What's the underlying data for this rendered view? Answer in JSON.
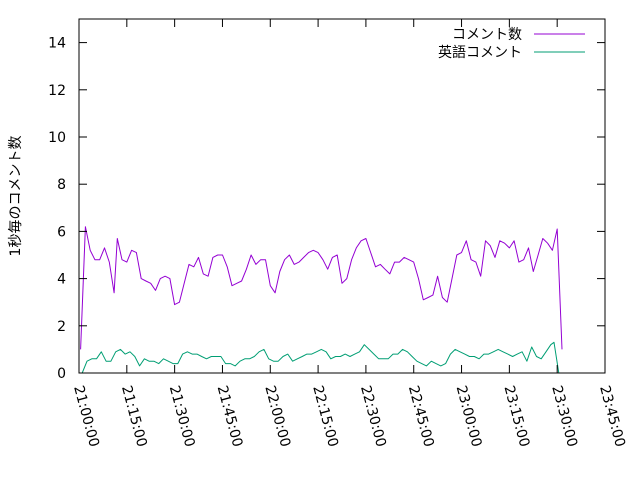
{
  "chart_data": {
    "type": "line",
    "title": "",
    "xlabel": "",
    "ylabel": "1秒毎のコメント数",
    "xlim": [
      0,
      165
    ],
    "ylim": [
      0,
      15
    ],
    "x_ticks": [
      {
        "value": 0,
        "label": "21:00:00"
      },
      {
        "value": 15,
        "label": "21:15:00"
      },
      {
        "value": 30,
        "label": "21:30:00"
      },
      {
        "value": 45,
        "label": "21:45:00"
      },
      {
        "value": 60,
        "label": "22:00:00"
      },
      {
        "value": 75,
        "label": "22:15:00"
      },
      {
        "value": 90,
        "label": "22:30:00"
      },
      {
        "value": 105,
        "label": "22:45:00"
      },
      {
        "value": 120,
        "label": "23:00:00"
      },
      {
        "value": 135,
        "label": "23:15:00"
      },
      {
        "value": 150,
        "label": "23:30:00"
      },
      {
        "value": 165,
        "label": "23:45:00"
      }
    ],
    "y_ticks": [
      0,
      2,
      4,
      6,
      8,
      10,
      12,
      14
    ],
    "grid": false,
    "legend": "top-right",
    "series": [
      {
        "name": "コメント数",
        "color": "#9400d3",
        "points": [
          [
            0.5,
            1.0
          ],
          [
            2.0,
            6.2
          ],
          [
            3.5,
            5.2
          ],
          [
            5.0,
            4.8
          ],
          [
            6.5,
            4.8
          ],
          [
            8.0,
            5.3
          ],
          [
            9.5,
            4.7
          ],
          [
            11.0,
            3.4
          ],
          [
            12.0,
            5.7
          ],
          [
            13.5,
            4.8
          ],
          [
            15.0,
            4.7
          ],
          [
            16.5,
            5.2
          ],
          [
            18.0,
            5.1
          ],
          [
            19.5,
            4.0
          ],
          [
            21.0,
            3.9
          ],
          [
            22.5,
            3.8
          ],
          [
            24.0,
            3.5
          ],
          [
            25.5,
            4.0
          ],
          [
            27.0,
            4.1
          ],
          [
            28.5,
            4.0
          ],
          [
            30.0,
            2.9
          ],
          [
            31.5,
            3.0
          ],
          [
            33.0,
            3.8
          ],
          [
            34.5,
            4.6
          ],
          [
            36.0,
            4.5
          ],
          [
            37.5,
            4.9
          ],
          [
            39.0,
            4.2
          ],
          [
            40.5,
            4.1
          ],
          [
            42.0,
            4.9
          ],
          [
            43.5,
            5.0
          ],
          [
            45.0,
            5.0
          ],
          [
            46.5,
            4.5
          ],
          [
            48.0,
            3.7
          ],
          [
            49.5,
            3.8
          ],
          [
            51.0,
            3.9
          ],
          [
            52.5,
            4.4
          ],
          [
            54.0,
            5.0
          ],
          [
            55.5,
            4.6
          ],
          [
            57.0,
            4.8
          ],
          [
            58.5,
            4.8
          ],
          [
            60.0,
            3.7
          ],
          [
            61.5,
            3.4
          ],
          [
            63.0,
            4.3
          ],
          [
            64.5,
            4.8
          ],
          [
            66.0,
            5.0
          ],
          [
            67.5,
            4.6
          ],
          [
            69.0,
            4.7
          ],
          [
            70.5,
            4.9
          ],
          [
            72.0,
            5.1
          ],
          [
            73.5,
            5.2
          ],
          [
            75.0,
            5.1
          ],
          [
            76.5,
            4.8
          ],
          [
            78.0,
            4.4
          ],
          [
            79.5,
            4.9
          ],
          [
            81.0,
            5.0
          ],
          [
            82.5,
            3.8
          ],
          [
            84.0,
            4.0
          ],
          [
            85.5,
            4.8
          ],
          [
            87.0,
            5.3
          ],
          [
            88.5,
            5.6
          ],
          [
            90.0,
            5.7
          ],
          [
            91.5,
            5.1
          ],
          [
            93.0,
            4.5
          ],
          [
            94.5,
            4.6
          ],
          [
            96.0,
            4.4
          ],
          [
            97.5,
            4.2
          ],
          [
            99.0,
            4.7
          ],
          [
            100.5,
            4.7
          ],
          [
            102.0,
            4.9
          ],
          [
            103.5,
            4.8
          ],
          [
            105.0,
            4.7
          ],
          [
            106.5,
            4.0
          ],
          [
            108.0,
            3.1
          ],
          [
            109.5,
            3.2
          ],
          [
            111.0,
            3.3
          ],
          [
            112.5,
            4.1
          ],
          [
            114.0,
            3.2
          ],
          [
            115.5,
            3.0
          ],
          [
            117.0,
            4.0
          ],
          [
            118.5,
            5.0
          ],
          [
            120.0,
            5.1
          ],
          [
            121.5,
            5.6
          ],
          [
            123.0,
            4.8
          ],
          [
            124.5,
            4.7
          ],
          [
            126.0,
            4.1
          ],
          [
            127.5,
            5.6
          ],
          [
            129.0,
            5.4
          ],
          [
            130.5,
            4.9
          ],
          [
            132.0,
            5.6
          ],
          [
            133.5,
            5.5
          ],
          [
            135.0,
            5.3
          ],
          [
            136.5,
            5.6
          ],
          [
            138.0,
            4.7
          ],
          [
            139.5,
            4.8
          ],
          [
            141.0,
            5.3
          ],
          [
            142.5,
            4.3
          ],
          [
            144.0,
            5.0
          ],
          [
            145.5,
            5.7
          ],
          [
            147.0,
            5.5
          ],
          [
            148.5,
            5.2
          ],
          [
            150.0,
            6.1
          ],
          [
            151.5,
            1.0
          ]
        ]
      },
      {
        "name": "英語コメント",
        "color": "#009e73",
        "points": [
          [
            1.0,
            0.0
          ],
          [
            2.5,
            0.5
          ],
          [
            4.0,
            0.6
          ],
          [
            5.5,
            0.6
          ],
          [
            7.0,
            0.9
          ],
          [
            8.5,
            0.5
          ],
          [
            10.0,
            0.5
          ],
          [
            11.5,
            0.9
          ],
          [
            13.0,
            1.0
          ],
          [
            14.5,
            0.8
          ],
          [
            16.0,
            0.9
          ],
          [
            17.5,
            0.7
          ],
          [
            19.0,
            0.3
          ],
          [
            20.5,
            0.6
          ],
          [
            22.0,
            0.5
          ],
          [
            23.5,
            0.5
          ],
          [
            25.0,
            0.4
          ],
          [
            26.5,
            0.6
          ],
          [
            28.0,
            0.5
          ],
          [
            29.5,
            0.4
          ],
          [
            31.0,
            0.4
          ],
          [
            32.5,
            0.8
          ],
          [
            34.0,
            0.9
          ],
          [
            35.5,
            0.8
          ],
          [
            37.0,
            0.8
          ],
          [
            38.5,
            0.7
          ],
          [
            40.0,
            0.6
          ],
          [
            41.5,
            0.7
          ],
          [
            43.0,
            0.7
          ],
          [
            44.5,
            0.7
          ],
          [
            46.0,
            0.4
          ],
          [
            47.5,
            0.4
          ],
          [
            49.0,
            0.3
          ],
          [
            50.5,
            0.5
          ],
          [
            52.0,
            0.6
          ],
          [
            53.5,
            0.6
          ],
          [
            55.0,
            0.7
          ],
          [
            56.5,
            0.9
          ],
          [
            58.0,
            1.0
          ],
          [
            59.5,
            0.6
          ],
          [
            61.0,
            0.5
          ],
          [
            62.5,
            0.5
          ],
          [
            64.0,
            0.7
          ],
          [
            65.5,
            0.8
          ],
          [
            67.0,
            0.5
          ],
          [
            68.5,
            0.6
          ],
          [
            70.0,
            0.7
          ],
          [
            71.5,
            0.8
          ],
          [
            73.0,
            0.8
          ],
          [
            74.5,
            0.9
          ],
          [
            76.0,
            1.0
          ],
          [
            77.5,
            0.9
          ],
          [
            79.0,
            0.6
          ],
          [
            80.5,
            0.7
          ],
          [
            82.0,
            0.7
          ],
          [
            83.5,
            0.8
          ],
          [
            85.0,
            0.7
          ],
          [
            86.5,
            0.8
          ],
          [
            88.0,
            0.9
          ],
          [
            89.5,
            1.2
          ],
          [
            91.0,
            1.0
          ],
          [
            92.5,
            0.8
          ],
          [
            94.0,
            0.6
          ],
          [
            95.5,
            0.6
          ],
          [
            97.0,
            0.6
          ],
          [
            98.5,
            0.8
          ],
          [
            100.0,
            0.8
          ],
          [
            101.5,
            1.0
          ],
          [
            103.0,
            0.9
          ],
          [
            104.5,
            0.7
          ],
          [
            106.0,
            0.5
          ],
          [
            107.5,
            0.4
          ],
          [
            109.0,
            0.3
          ],
          [
            110.5,
            0.5
          ],
          [
            112.0,
            0.4
          ],
          [
            113.5,
            0.3
          ],
          [
            115.0,
            0.4
          ],
          [
            116.5,
            0.8
          ],
          [
            118.0,
            1.0
          ],
          [
            119.5,
            0.9
          ],
          [
            121.0,
            0.8
          ],
          [
            122.5,
            0.7
          ],
          [
            124.0,
            0.7
          ],
          [
            125.5,
            0.6
          ],
          [
            127.0,
            0.8
          ],
          [
            128.5,
            0.8
          ],
          [
            130.0,
            0.9
          ],
          [
            131.5,
            1.0
          ],
          [
            133.0,
            0.9
          ],
          [
            134.5,
            0.8
          ],
          [
            136.0,
            0.7
          ],
          [
            137.5,
            0.8
          ],
          [
            139.0,
            0.9
          ],
          [
            140.5,
            0.5
          ],
          [
            142.0,
            1.1
          ],
          [
            143.5,
            0.7
          ],
          [
            145.0,
            0.6
          ],
          [
            146.5,
            0.9
          ],
          [
            148.0,
            1.2
          ],
          [
            149.0,
            1.3
          ],
          [
            150.5,
            0.0
          ]
        ]
      }
    ]
  }
}
